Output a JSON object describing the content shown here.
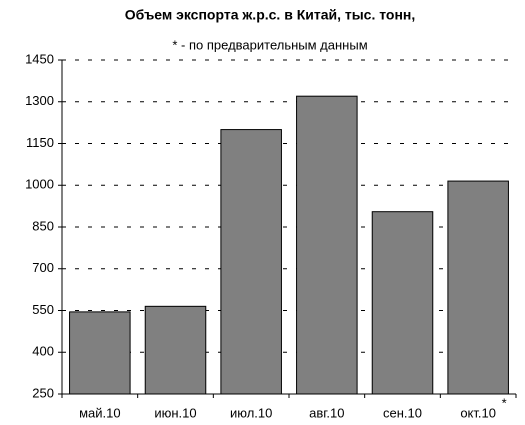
{
  "chart_data": {
    "type": "bar",
    "title": "Объем экспорта ж.р.с. в Китай, тыс. тонн,",
    "subtitle": "* - по предварительным данным",
    "categories": [
      "май.10",
      "июн.10",
      "июл.10",
      "авг.10",
      "сен.10",
      "окт.10"
    ],
    "values": [
      545,
      565,
      1200,
      1320,
      905,
      1015
    ],
    "annotations": [
      {
        "text": "*",
        "category": 5
      }
    ],
    "color": "#808080",
    "ylim": [
      250,
      1450
    ],
    "yticks": [
      250,
      400,
      550,
      700,
      850,
      1000,
      1150,
      1300,
      1450
    ],
    "grid": true
  }
}
